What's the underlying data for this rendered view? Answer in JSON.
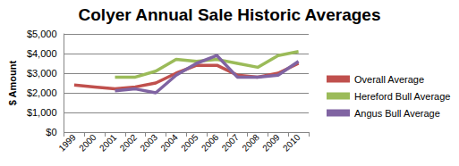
{
  "chart_data": {
    "type": "line",
    "title": "Colyer Annual Sale Historic Averages",
    "y_label": "$ Amount",
    "categories": [
      "1999",
      "2000",
      "2001",
      "2002",
      "2003",
      "2004",
      "2005",
      "2006",
      "2007",
      "2008",
      "2009",
      "2010"
    ],
    "series": [
      {
        "name": "Overall Average",
        "color": "#c0504d",
        "values": [
          2400,
          2300,
          2200,
          2300,
          2500,
          3000,
          3400,
          3400,
          2900,
          2800,
          3000,
          3500
        ]
      },
      {
        "name": "Hereford Bull Average",
        "color": "#9bbb59",
        "values": [
          null,
          null,
          2800,
          2800,
          3100,
          3700,
          3600,
          3700,
          3500,
          3300,
          3900,
          4100
        ]
      },
      {
        "name": "Angus Bull Average",
        "color": "#8064a2",
        "values": [
          null,
          null,
          2100,
          2200,
          2000,
          2900,
          3500,
          3900,
          2800,
          2800,
          2900,
          3600
        ]
      }
    ],
    "ylim": [
      0,
      5000
    ],
    "yticks": [
      {
        "value": 0,
        "label": "$0"
      },
      {
        "value": 1000,
        "label": "$1,000"
      },
      {
        "value": 2000,
        "label": "$2,000"
      },
      {
        "value": 3000,
        "label": "$3,000"
      },
      {
        "value": 4000,
        "label": "$4,000"
      },
      {
        "value": 5000,
        "label": "$5,000"
      }
    ],
    "grid": true,
    "legend": "right",
    "marker": "none",
    "line_style": "solid"
  }
}
